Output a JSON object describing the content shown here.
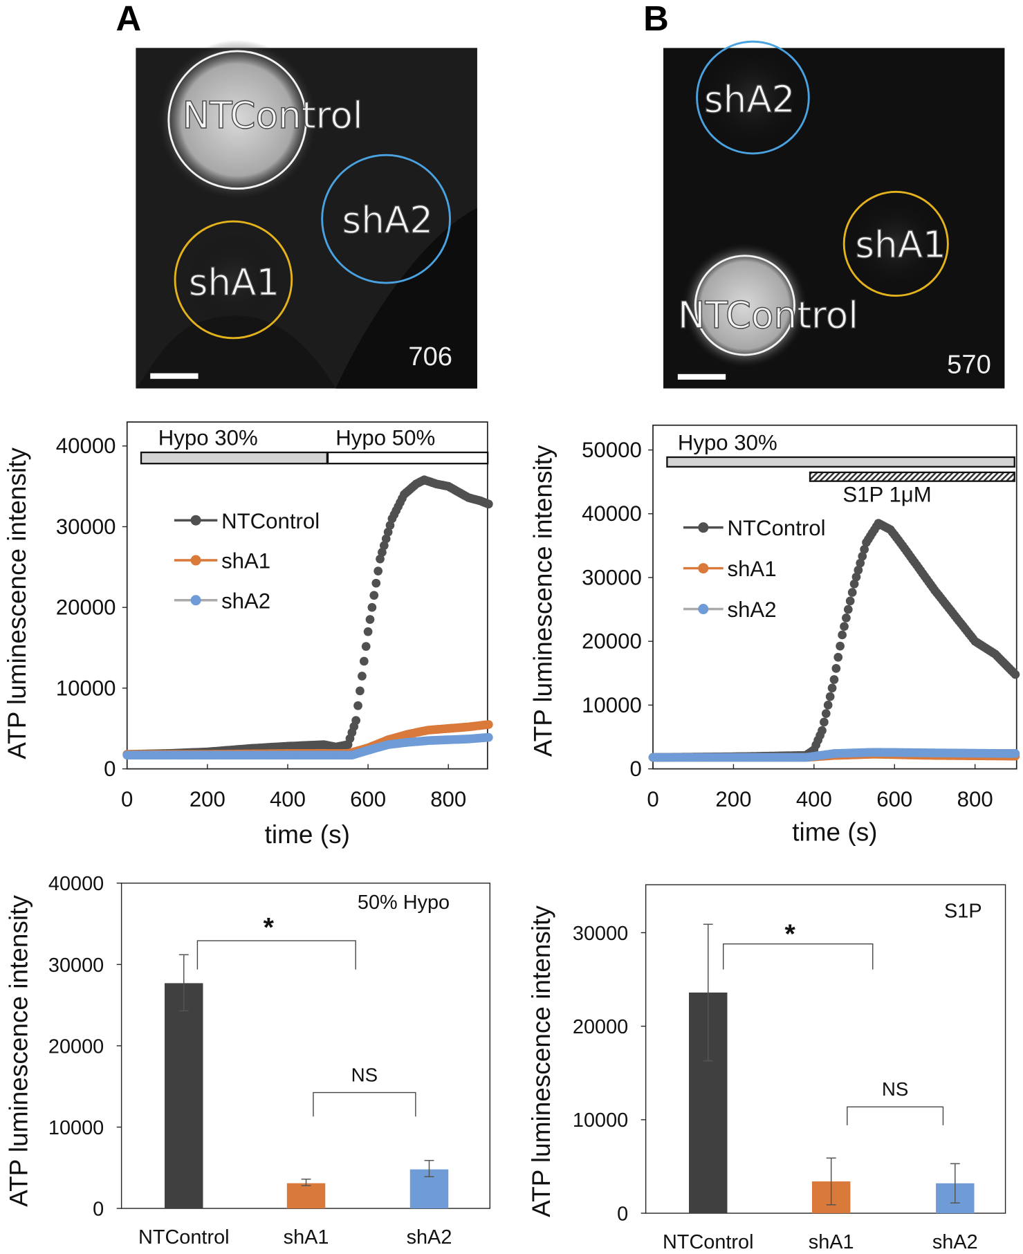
{
  "panels": {
    "A": {
      "label": "A",
      "image": {
        "labels": [
          "NTControl",
          "shA2",
          "shA1"
        ],
        "frame_number": "706"
      }
    },
    "B": {
      "label": "B",
      "image": {
        "labels": [
          "shA2",
          "shA1",
          "NTControl"
        ],
        "frame_number": "570"
      }
    }
  },
  "colors": {
    "NTControl": "#505050",
    "shA1": "#d9793a",
    "shA2": "#6f9bd6",
    "bar_NTControl": "#404040",
    "bar_shA1": "#d9793a",
    "bar_shA2": "#6f9bd6"
  },
  "chart_data": [
    {
      "type": "line",
      "panel": "A",
      "xlabel": "time (s)",
      "ylabel": "ATP luminescence intensity",
      "xlim": [
        0,
        900
      ],
      "ylim": [
        0,
        40000
      ],
      "xticks": [
        "0",
        "200",
        "400",
        "600",
        "800"
      ],
      "yticks": [
        "0",
        "10000",
        "20000",
        "30000",
        "40000"
      ],
      "annotations": [
        "Hypo 30%",
        "Hypo 50%"
      ],
      "stimulus_bars": [
        {
          "label": "Hypo 30%",
          "start": 35,
          "end": 500
        },
        {
          "label": "Hypo 50%",
          "start": 500,
          "end": 900
        }
      ],
      "legend": [
        "NTControl",
        "shA1",
        "shA2"
      ],
      "series": [
        {
          "name": "NTControl",
          "x": [
            0,
            100,
            200,
            300,
            400,
            490,
            520,
            550,
            570,
            600,
            630,
            660,
            690,
            720,
            740,
            770,
            800,
            850,
            880,
            900
          ],
          "y": [
            1800,
            1900,
            2100,
            2500,
            2800,
            3000,
            2700,
            3000,
            6000,
            17000,
            26000,
            31000,
            34000,
            35300,
            35800,
            35300,
            35000,
            33600,
            33200,
            32800
          ]
        },
        {
          "name": "shA1",
          "x": [
            0,
            200,
            400,
            550,
            600,
            650,
            700,
            750,
            800,
            850,
            900
          ],
          "y": [
            1800,
            1800,
            1900,
            1900,
            2600,
            3600,
            4300,
            4800,
            5000,
            5200,
            5500
          ]
        },
        {
          "name": "shA2",
          "x": [
            0,
            200,
            400,
            560,
            600,
            650,
            700,
            750,
            800,
            850,
            900
          ],
          "y": [
            1700,
            1700,
            1700,
            1700,
            2300,
            3000,
            3300,
            3500,
            3600,
            3700,
            3900
          ]
        }
      ]
    },
    {
      "type": "line",
      "panel": "B",
      "xlabel": "time (s)",
      "ylabel": "ATP luminescence intensity",
      "xlim": [
        0,
        900
      ],
      "ylim": [
        0,
        50000
      ],
      "xticks": [
        "0",
        "200",
        "400",
        "600",
        "800"
      ],
      "yticks": [
        "0",
        "10000",
        "20000",
        "30000",
        "40000",
        "50000"
      ],
      "annotations": [
        "Hypo 30%",
        "S1P 1μM"
      ],
      "stimulus_bars": [
        {
          "label": "Hypo 30%",
          "start": 35,
          "end": 900
        },
        {
          "label": "S1P 1μM",
          "start": 390,
          "end": 900
        }
      ],
      "legend": [
        "NTControl",
        "shA1",
        "shA2"
      ],
      "series": [
        {
          "name": "NTControl",
          "x": [
            0,
            200,
            380,
            400,
            420,
            450,
            470,
            500,
            530,
            560,
            590,
            620,
            660,
            700,
            750,
            800,
            850,
            900
          ],
          "y": [
            1800,
            1900,
            2100,
            3000,
            6000,
            14000,
            21000,
            29000,
            35500,
            38500,
            37500,
            35000,
            31500,
            28000,
            24000,
            20000,
            18000,
            14800
          ]
        },
        {
          "name": "shA1",
          "x": [
            0,
            380,
            450,
            550,
            700,
            900
          ],
          "y": [
            1800,
            1800,
            2100,
            2300,
            2100,
            2000
          ]
        },
        {
          "name": "shA2",
          "x": [
            0,
            380,
            450,
            550,
            700,
            900
          ],
          "y": [
            1800,
            1800,
            2400,
            2600,
            2500,
            2400
          ]
        }
      ]
    },
    {
      "type": "bar",
      "panel": "A",
      "title": "50% Hypo",
      "ylabel": "ATP luminescence intensity",
      "ylim": [
        0,
        40000
      ],
      "yticks": [
        "0",
        "10000",
        "20000",
        "30000",
        "40000"
      ],
      "categories": [
        "NTControl",
        "shA1",
        "shA2"
      ],
      "values": [
        27700,
        3100,
        4800
      ],
      "error_low": [
        24300,
        2800,
        3900
      ],
      "error_high": [
        31200,
        3600,
        5900
      ],
      "significance": [
        {
          "from": "NTControl",
          "to": "shA2",
          "label": "*"
        },
        {
          "from": "shA1",
          "to": "shA2",
          "label": "NS"
        }
      ]
    },
    {
      "type": "bar",
      "panel": "B",
      "title": "S1P",
      "ylabel": "ATP luminescence intensity",
      "ylim": [
        0,
        35000
      ],
      "yticks": [
        "0",
        "10000",
        "20000",
        "30000"
      ],
      "categories": [
        "NTControl",
        "shA1",
        "shA2"
      ],
      "values": [
        23600,
        3400,
        3200
      ],
      "error_low": [
        16300,
        900,
        1100
      ],
      "error_high": [
        30900,
        5900,
        5300
      ],
      "significance": [
        {
          "from": "NTControl",
          "to": "shA2",
          "label": "*"
        },
        {
          "from": "shA1",
          "to": "shA2",
          "label": "NS"
        }
      ]
    }
  ]
}
